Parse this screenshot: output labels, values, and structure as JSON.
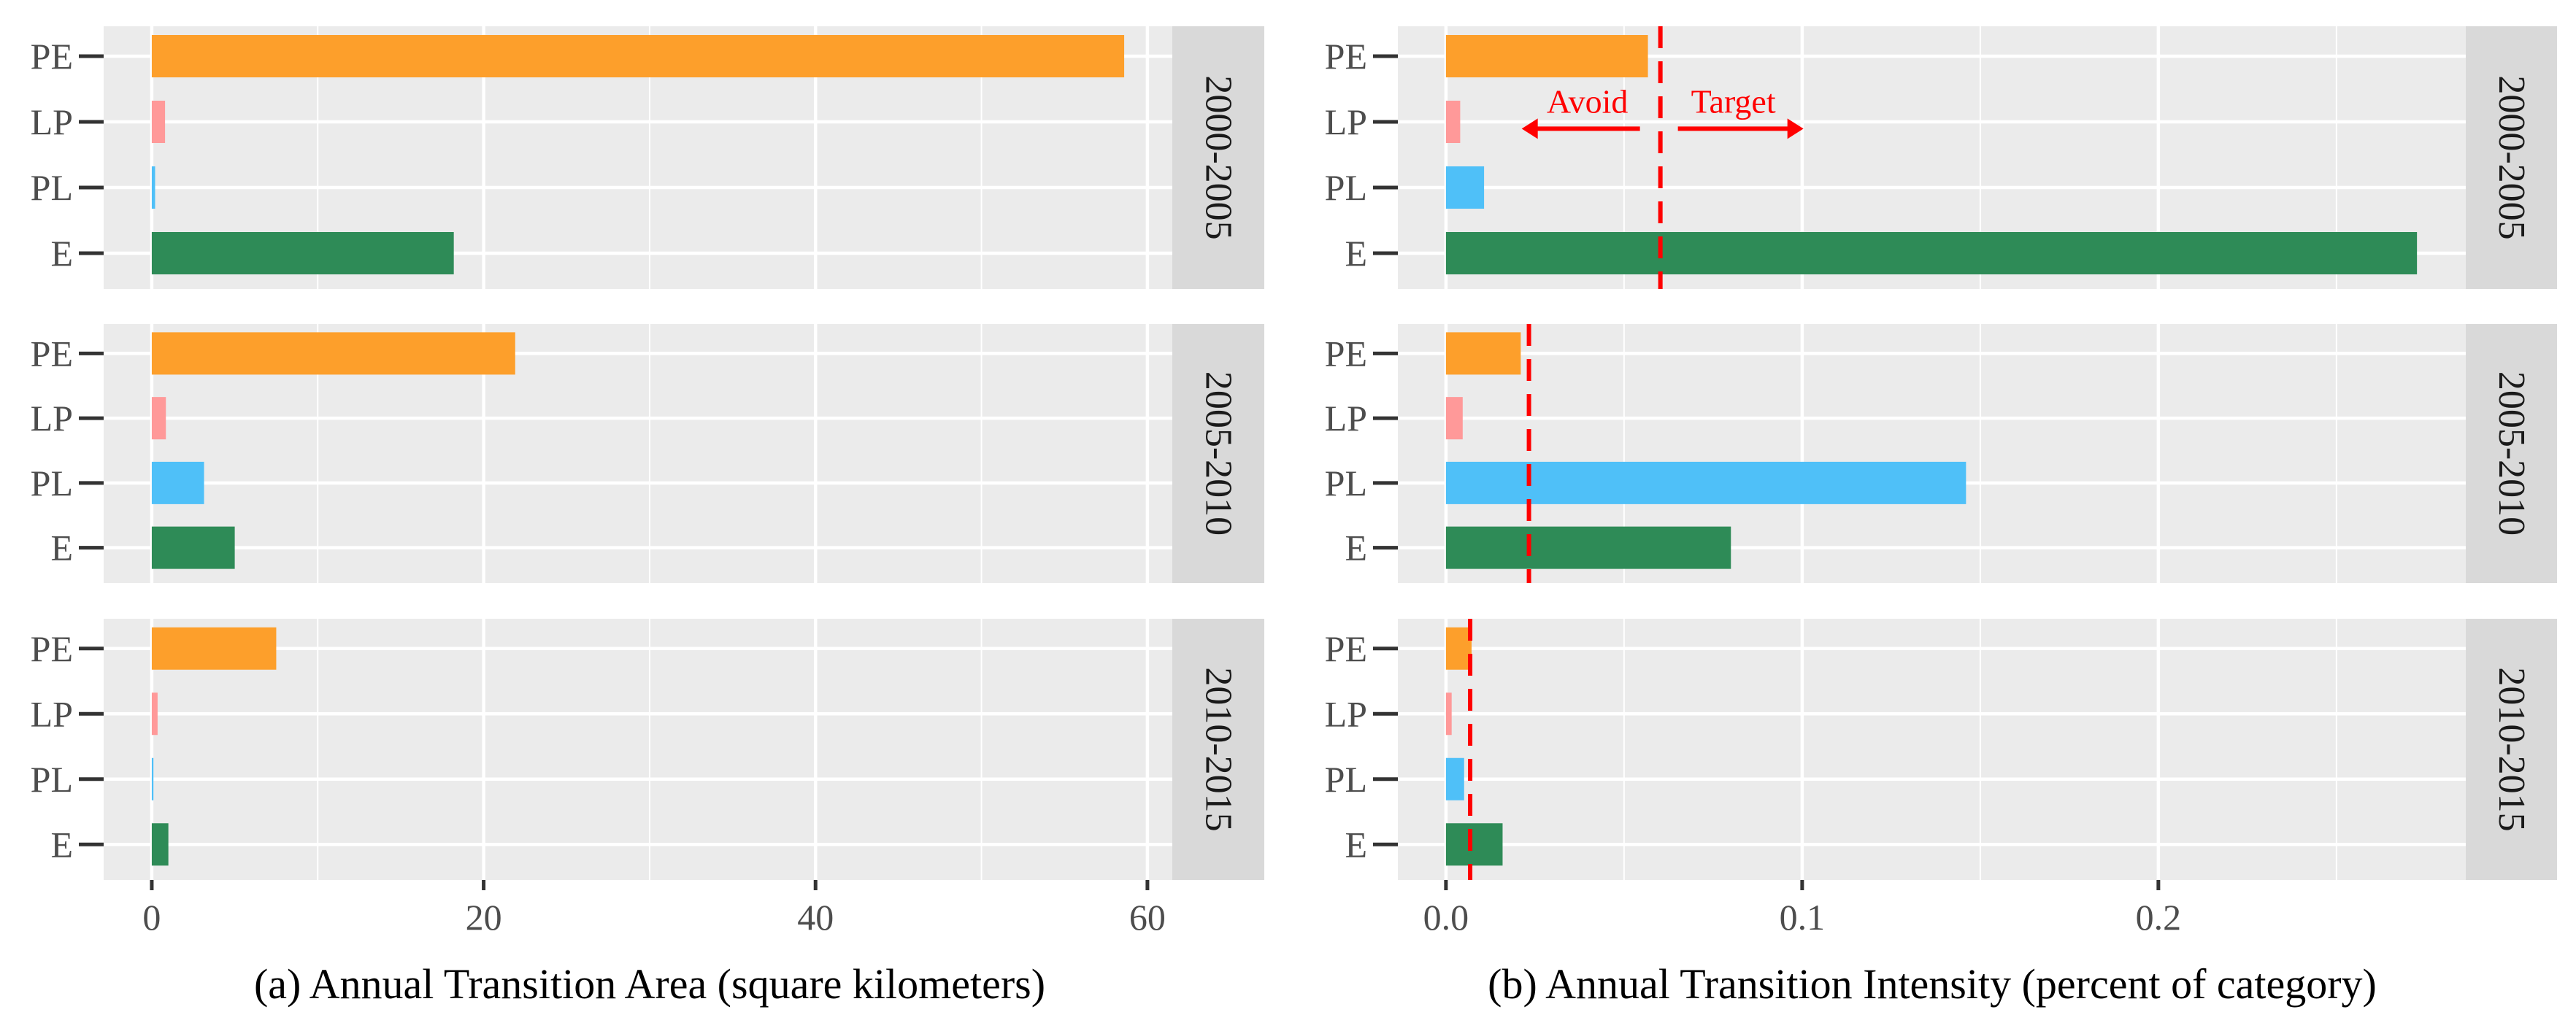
{
  "chart_data": [
    {
      "type": "bar",
      "orientation": "horizontal",
      "title": "",
      "xlabel": "(a) Annual Transition Area (square kilometers)",
      "ylabel": "",
      "xlim": [
        -2.9,
        61.5
      ],
      "xticks": [
        0,
        20,
        40,
        60
      ],
      "xtick_labels": [
        "0",
        "20",
        "40",
        "60"
      ],
      "minor_gridlines": [
        10,
        30,
        50
      ],
      "grid": true,
      "categories": [
        "PE",
        "LP",
        "PL",
        "E"
      ],
      "facets": [
        {
          "label": "2000-2005",
          "values": [
            58.6,
            0.8,
            0.2,
            18.2
          ]
        },
        {
          "label": "2005-2010",
          "values": [
            21.9,
            0.85,
            3.15,
            5.0
          ]
        },
        {
          "label": "2010-2015",
          "values": [
            7.5,
            0.35,
            0.1,
            1.0
          ]
        }
      ]
    },
    {
      "type": "bar",
      "orientation": "horizontal",
      "title": "",
      "xlabel": "(b) Annual Transition Intensity (percent of category)",
      "ylabel": "",
      "xlim": [
        -0.0135,
        0.2863
      ],
      "xticks": [
        0,
        0.1,
        0.2
      ],
      "xtick_labels": [
        "0.0",
        "0.1",
        "0.2"
      ],
      "minor_gridlines": [
        0.05,
        0.15,
        0.25
      ],
      "grid": true,
      "categories": [
        "PE",
        "LP",
        "PL",
        "E"
      ],
      "facets": [
        {
          "label": "2000-2005",
          "values": [
            0.0567,
            0.004,
            0.0107,
            0.2726
          ],
          "uniform_intensity": 0.0602
        },
        {
          "label": "2005-2010",
          "values": [
            0.021,
            0.0047,
            0.146,
            0.08
          ],
          "uniform_intensity": 0.0233
        },
        {
          "label": "2010-2015",
          "values": [
            0.0072,
            0.0016,
            0.0051,
            0.0159
          ],
          "uniform_intensity": 0.0068
        }
      ],
      "annotations": {
        "avoid": "Avoid",
        "target": "Target"
      }
    }
  ],
  "colors": {
    "PE": "#fd9f2b",
    "LP": "#ff9999",
    "PL": "#4fc0f8",
    "E": "#2e8b57",
    "panel_bg": "#ebebeb",
    "strip_bg": "#d9d9d9",
    "uniform_line": "#ff0000"
  }
}
